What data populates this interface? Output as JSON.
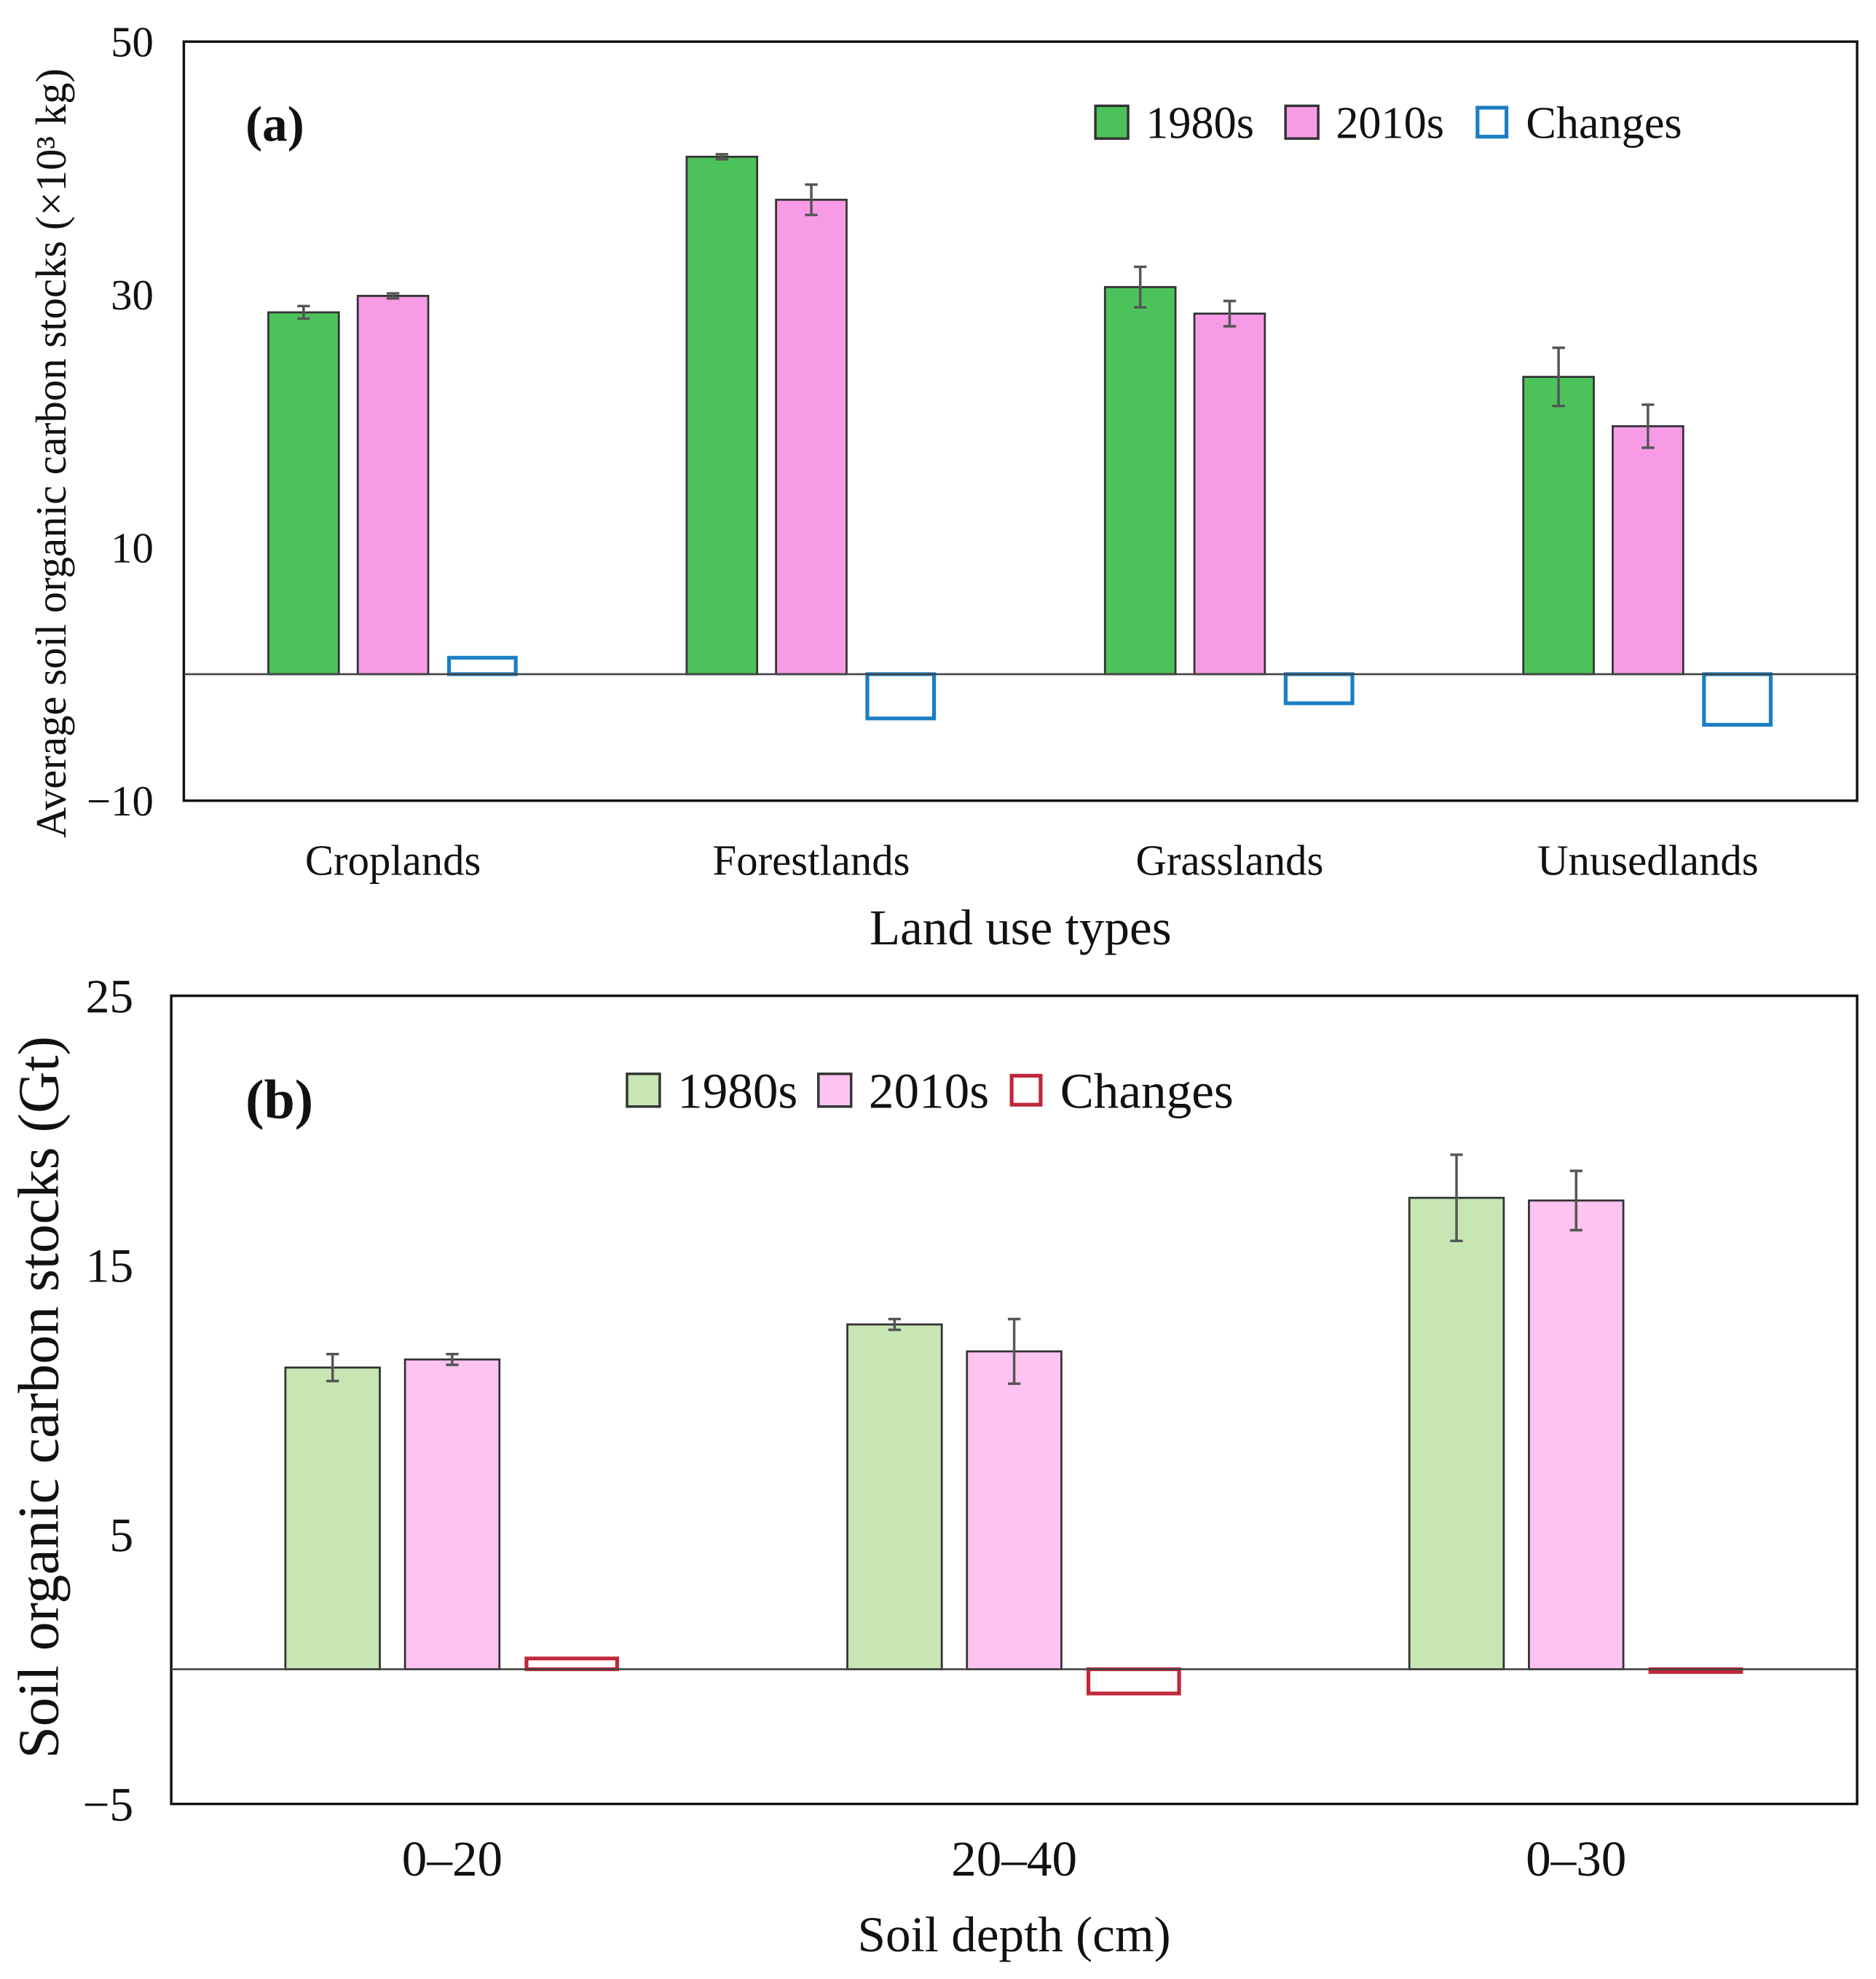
{
  "chart_data": [
    {
      "type": "bar",
      "panel_label": "(a)",
      "xlabel": "Land use types",
      "ylabel": "Average soil organic carbon stocks (×10³ kg)",
      "ylim": [
        -10,
        50
      ],
      "yticks": [
        "50",
        "30",
        "10",
        "−10"
      ],
      "ytick_values": [
        50,
        30,
        10,
        -10
      ],
      "categories": [
        "Croplands",
        "Forestlands",
        "Grasslands",
        "Unusedlands"
      ],
      "legend_placement": "top-right",
      "series": [
        {
          "name": "1980s",
          "color": "#4cc35a",
          "style": "filled",
          "values": [
            28.6,
            40.9,
            30.6,
            23.5
          ],
          "errors": [
            0.5,
            0.2,
            1.6,
            2.3
          ]
        },
        {
          "name": "2010s",
          "color": "#f79be6",
          "style": "filled",
          "values": [
            29.9,
            37.5,
            28.5,
            19.6
          ],
          "errors": [
            0.2,
            1.2,
            1.0,
            1.7
          ]
        },
        {
          "name": "Changes",
          "color": "#1a7fc4",
          "style": "outline",
          "values": [
            1.3,
            -3.5,
            -2.3,
            -4.0
          ],
          "errors": null
        }
      ]
    },
    {
      "type": "bar",
      "panel_label": "(b)",
      "xlabel": "Soil depth (cm)",
      "ylabel": "Soil organic carbon stocks (Gt)",
      "ylim": [
        -5,
        25
      ],
      "yticks": [
        "25",
        "15",
        "5",
        "−5"
      ],
      "ytick_values": [
        25,
        15,
        5,
        -5
      ],
      "categories": [
        "0–20",
        "20–40",
        "0–30"
      ],
      "legend_placement": "top-center",
      "series": [
        {
          "name": "1980s",
          "color": "#c7e6b3",
          "style": "filled",
          "values": [
            11.2,
            12.8,
            17.5
          ],
          "errors": [
            0.5,
            0.2,
            1.6
          ]
        },
        {
          "name": "2010s",
          "color": "#fdc3f1",
          "style": "filled",
          "values": [
            11.5,
            11.8,
            17.4
          ],
          "errors": [
            0.2,
            1.2,
            1.1
          ]
        },
        {
          "name": "Changes",
          "color": "#c0283a",
          "style": "outline",
          "values": [
            0.4,
            -0.9,
            -0.1
          ],
          "errors": null
        }
      ]
    }
  ]
}
